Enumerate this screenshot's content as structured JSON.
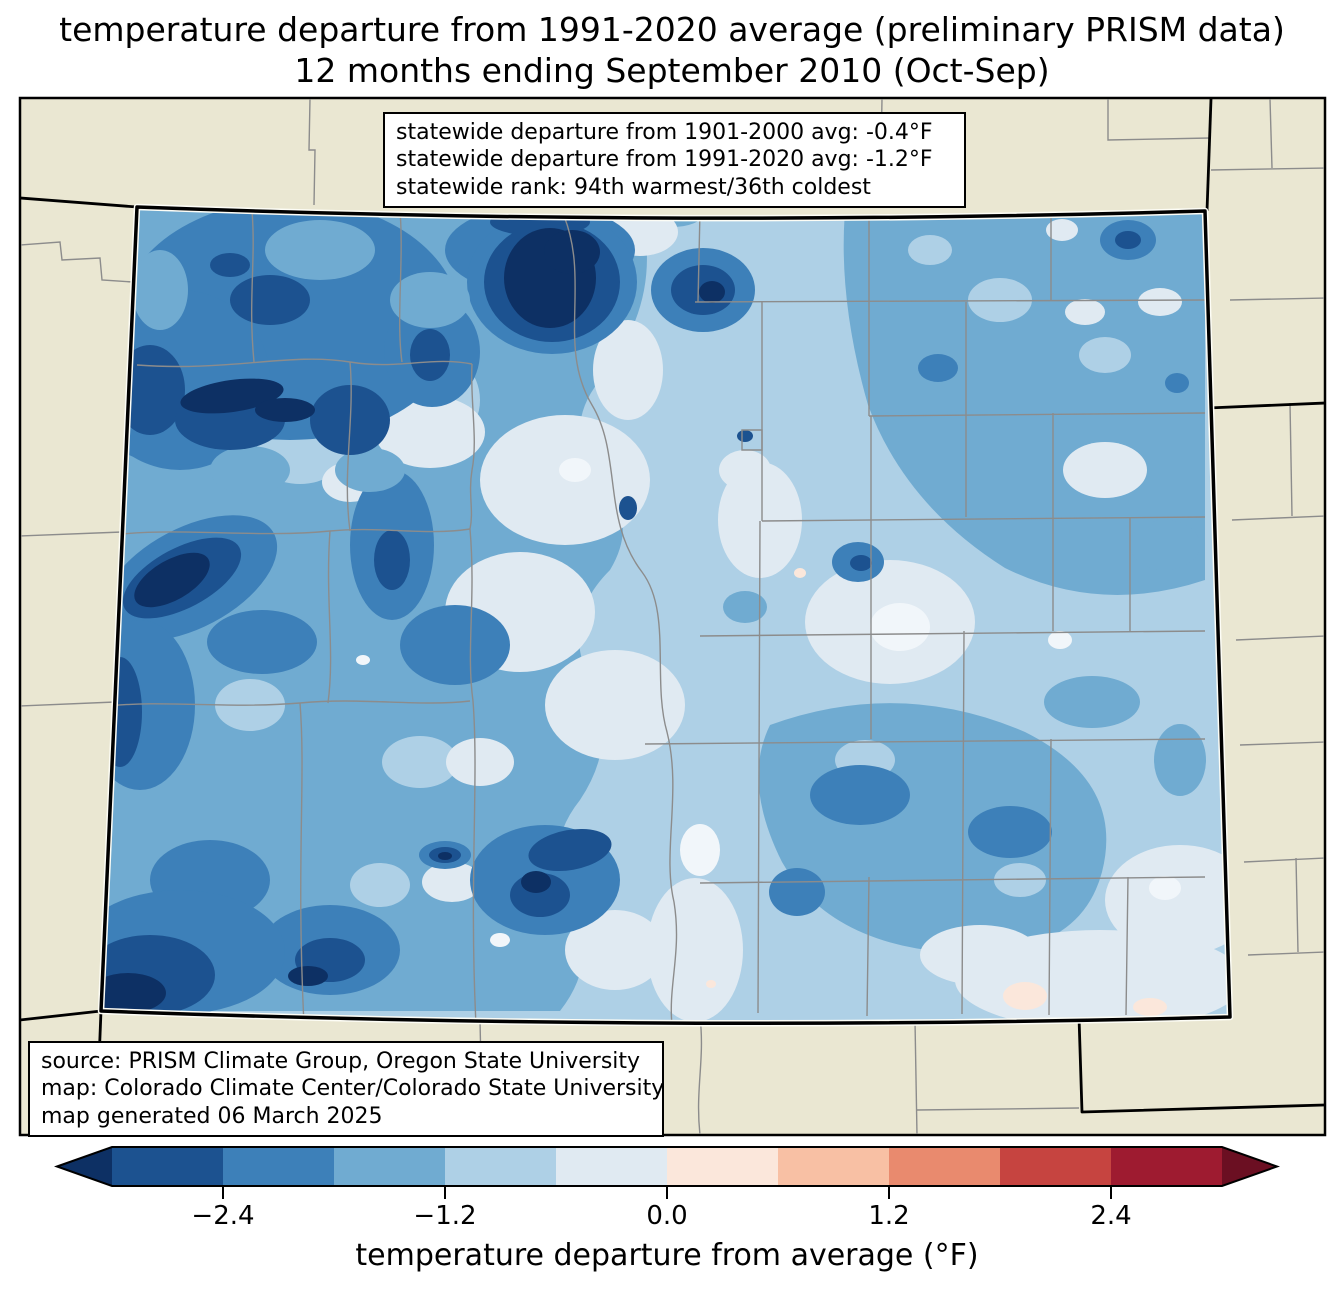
{
  "title": {
    "line1": "temperature departure from 1991-2020 average (preliminary PRISM data)",
    "line2": "12 months ending September 2010 (Oct-Sep)"
  },
  "annotations": {
    "stats_box": {
      "lines": [
        "statewide departure from 1901-2000 avg: -0.4°F",
        "statewide departure from 1991-2020 avg: -1.2°F",
        "statewide rank: 94th warmest/36th coldest"
      ]
    },
    "source_box": {
      "lines": [
        "source: PRISM Climate Group, Oregon State University",
        "map: Colorado Climate Center/Colorado State University",
        "map generated 06 March 2025"
      ]
    }
  },
  "colorbar": {
    "label": "temperature departure from average (°F)",
    "tick_labels": [
      "−2.4",
      "−1.2",
      "0.0",
      "1.2",
      "2.4"
    ],
    "tick_values": [
      -2.4,
      -1.2,
      0.0,
      1.2,
      2.4
    ],
    "value_range": [
      -3.0,
      3.0
    ],
    "bin_width": 0.6,
    "orientation": "horizontal",
    "extend": "both",
    "palette": [
      "#1c5290",
      "#3d80b9",
      "#70abd1",
      "#aed0e6",
      "#e0eaf2",
      "#fbe7db",
      "#f8c0a4",
      "#e98a6e",
      "#c64440",
      "#9e1b30"
    ],
    "under_color": "#0d3064",
    "over_color": "#6b0f22"
  },
  "colors": {
    "page_bg": "#ffffff",
    "plot_bg": "#eae7d2",
    "county_line": "#8c8c8c",
    "state_line": "#000000",
    "box_bg": "#ffffff",
    "near_white_spot": "#f1f6fa"
  }
}
